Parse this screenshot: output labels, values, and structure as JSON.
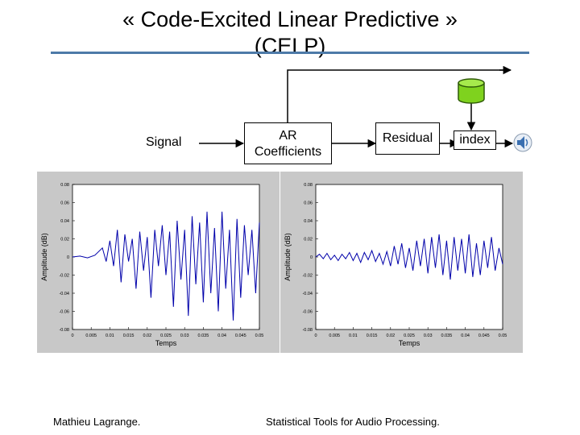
{
  "title": "« Code-Excited Linear Predictive »\n(CELP)",
  "title_line1": "« Code-Excited Linear Predictive »",
  "title_line2": "(CELP)",
  "diagram": {
    "signal_label": "Signal",
    "ar_box": "AR\nCoefficients",
    "ar_line1": "AR",
    "ar_line2": "Coefficients",
    "residual_box": "Residual",
    "index_box": "index",
    "codebook_icon": "database-cylinder-icon",
    "speaker_icon": "speaker-icon",
    "accent_color": "#4d7aa8",
    "codebook_color": "#7fd21e"
  },
  "chart_data": [
    {
      "type": "line",
      "title": "",
      "xlabel": "Temps",
      "ylabel": "Amplitude (dB)",
      "xlim": [
        0,
        0.05
      ],
      "ylim": [
        -0.08,
        0.08
      ],
      "x_ticks": [
        "0",
        "0.005",
        "0.01",
        "0.015",
        "0.02",
        "0.025",
        "0.03",
        "0.035",
        "0.04",
        "0.045",
        "0.05"
      ],
      "y_ticks": [
        "0.08",
        "0.06",
        "0.04",
        "0.02",
        "0",
        "-0.02",
        "-0.04",
        "-0.06",
        "-0.08"
      ],
      "series": [
        {
          "color": "#0000aa",
          "x": [
            0.0,
            0.002,
            0.004,
            0.006,
            0.008,
            0.009,
            0.01,
            0.011,
            0.012,
            0.013,
            0.014,
            0.015,
            0.016,
            0.017,
            0.018,
            0.019,
            0.02,
            0.021,
            0.022,
            0.023,
            0.024,
            0.025,
            0.026,
            0.027,
            0.028,
            0.029,
            0.03,
            0.031,
            0.032,
            0.033,
            0.034,
            0.035,
            0.036,
            0.037,
            0.038,
            0.039,
            0.04,
            0.041,
            0.042,
            0.043,
            0.044,
            0.045,
            0.046,
            0.047,
            0.048,
            0.049,
            0.05
          ],
          "y": [
            0.0,
            0.001,
            -0.001,
            0.002,
            0.01,
            -0.005,
            0.018,
            -0.01,
            0.03,
            -0.028,
            0.025,
            -0.005,
            0.02,
            -0.035,
            0.028,
            -0.015,
            0.022,
            -0.045,
            0.03,
            -0.01,
            0.035,
            -0.02,
            0.028,
            -0.055,
            0.04,
            -0.025,
            0.03,
            -0.065,
            0.045,
            -0.03,
            0.038,
            -0.05,
            0.05,
            -0.04,
            0.032,
            -0.06,
            0.05,
            -0.035,
            0.03,
            -0.07,
            0.042,
            -0.045,
            0.035,
            -0.02,
            0.03,
            -0.04,
            0.038
          ]
        }
      ]
    },
    {
      "type": "line",
      "title": "",
      "xlabel": "Temps",
      "ylabel": "Amplitude (dB)",
      "xlim": [
        0,
        0.05
      ],
      "ylim": [
        -0.08,
        0.08
      ],
      "x_ticks": [
        "0",
        "0.005",
        "0.01",
        "0.015",
        "0.02",
        "0.025",
        "0.03",
        "0.035",
        "0.04",
        "0.045",
        "0.05"
      ],
      "y_ticks": [
        "0.08",
        "0.06",
        "0.04",
        "0.02",
        "0",
        "-0.02",
        "-0.04",
        "-0.06",
        "-0.08"
      ],
      "series": [
        {
          "color": "#0000aa",
          "x": [
            0.0,
            0.001,
            0.002,
            0.003,
            0.004,
            0.005,
            0.006,
            0.007,
            0.008,
            0.009,
            0.01,
            0.011,
            0.012,
            0.013,
            0.014,
            0.015,
            0.016,
            0.017,
            0.018,
            0.019,
            0.02,
            0.021,
            0.022,
            0.023,
            0.024,
            0.025,
            0.026,
            0.027,
            0.028,
            0.029,
            0.03,
            0.031,
            0.032,
            0.033,
            0.034,
            0.035,
            0.036,
            0.037,
            0.038,
            0.039,
            0.04,
            0.041,
            0.042,
            0.043,
            0.044,
            0.045,
            0.046,
            0.047,
            0.048,
            0.049,
            0.05
          ],
          "y": [
            0.0,
            0.003,
            -0.002,
            0.004,
            -0.003,
            0.002,
            -0.004,
            0.003,
            -0.002,
            0.005,
            -0.004,
            0.004,
            -0.006,
            0.005,
            -0.003,
            0.007,
            -0.005,
            0.004,
            -0.008,
            0.006,
            -0.01,
            0.012,
            -0.008,
            0.015,
            -0.012,
            0.01,
            -0.015,
            0.018,
            -0.01,
            0.02,
            -0.018,
            0.022,
            -0.012,
            0.025,
            -0.02,
            0.018,
            -0.025,
            0.022,
            -0.015,
            0.02,
            -0.018,
            0.025,
            -0.022,
            0.015,
            -0.02,
            0.018,
            -0.012,
            0.022,
            -0.015,
            0.01,
            -0.008
          ]
        }
      ]
    }
  ],
  "footer": {
    "author": "Mathieu Lagrange.",
    "course": "Statistical Tools for Audio Processing."
  }
}
